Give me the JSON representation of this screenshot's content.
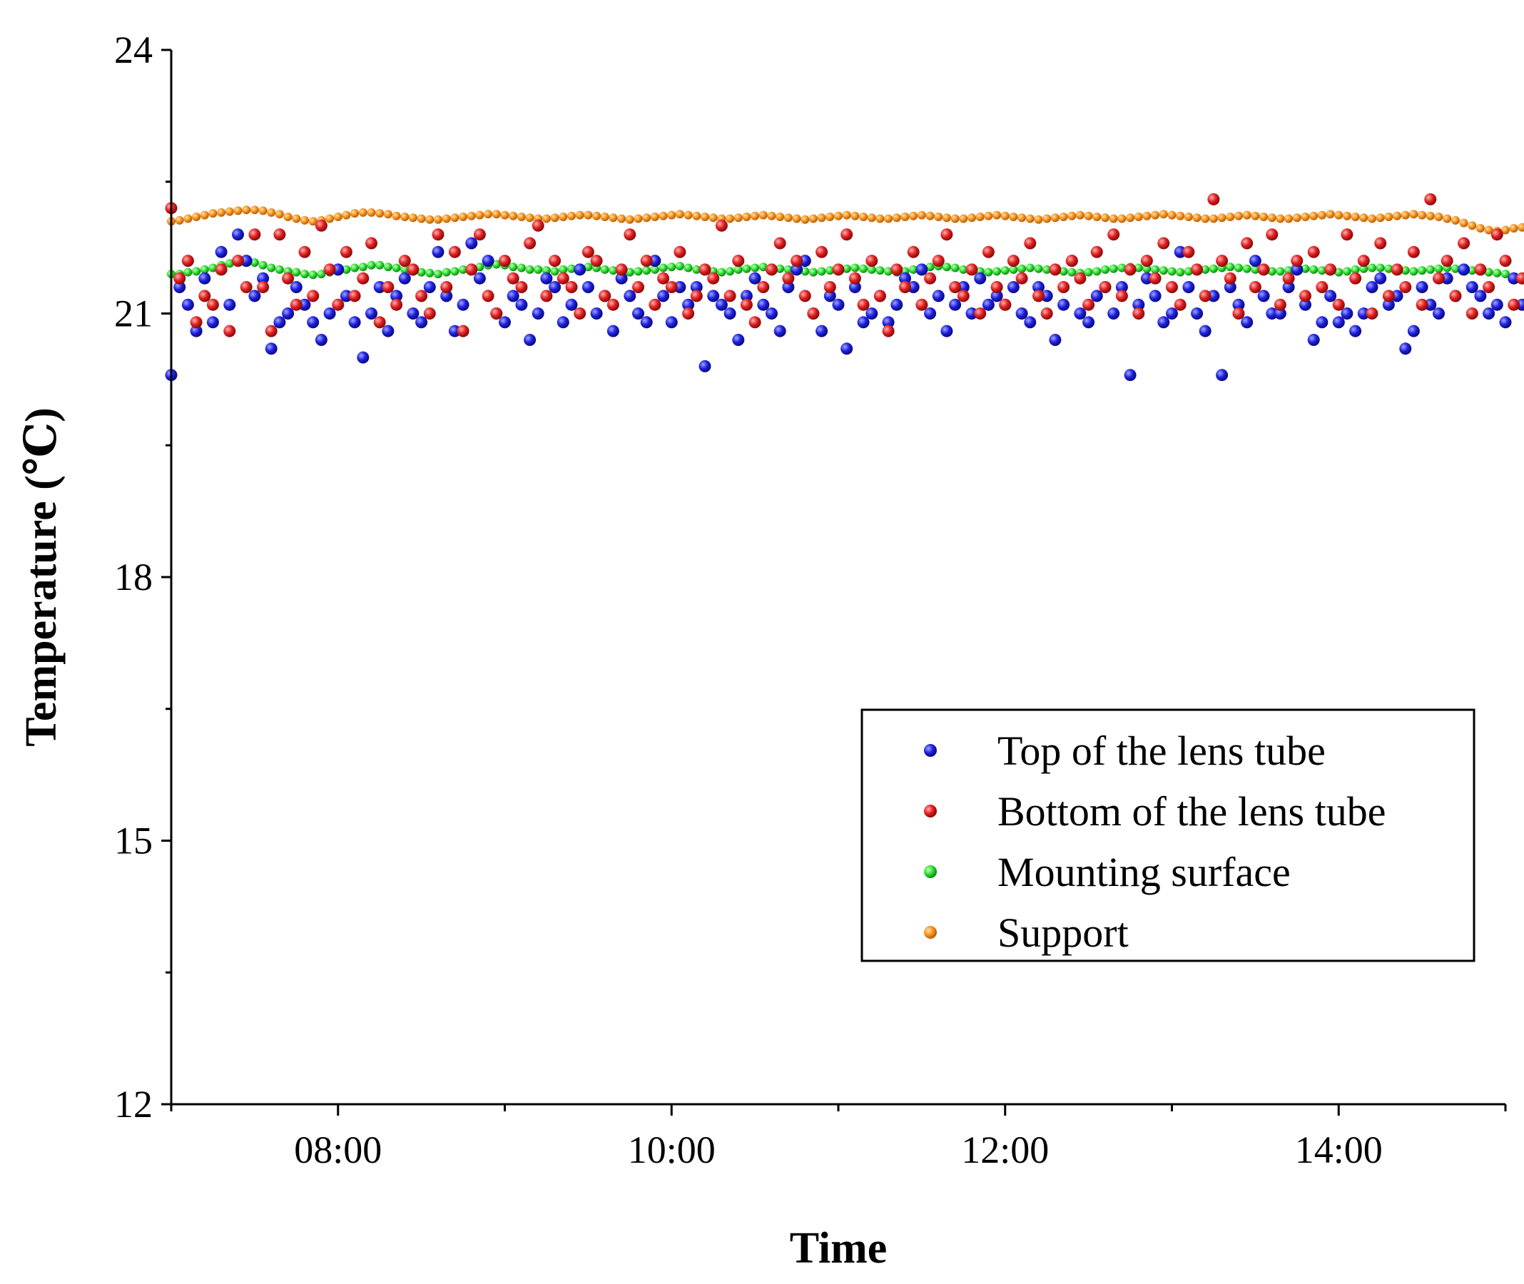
{
  "chart_data": {
    "type": "scatter",
    "title": "",
    "xlabel": "Time",
    "ylabel": "Temperature (℃)",
    "x_unit": "hours",
    "xlim": [
      7.0,
      15.0
    ],
    "ylim": [
      12,
      24
    ],
    "x_ticks": [
      {
        "value": 8,
        "label": "08:00"
      },
      {
        "value": 10,
        "label": "10:00"
      },
      {
        "value": 12,
        "label": "12:00"
      },
      {
        "value": 14,
        "label": "14:00"
      }
    ],
    "y_ticks": [
      {
        "value": 12,
        "label": "12"
      },
      {
        "value": 15,
        "label": "15"
      },
      {
        "value": 18,
        "label": "18"
      },
      {
        "value": 21,
        "label": "21"
      },
      {
        "value": 24,
        "label": "24"
      }
    ],
    "legend_position": "lower-right",
    "grid": false,
    "sample_interval_hours": 0.05,
    "series": [
      {
        "name": "Top of the lens tube",
        "color": "#1f1fe0",
        "start": 7.0,
        "step": 0.05,
        "values": [
          20.3,
          21.3,
          21.1,
          20.8,
          21.4,
          20.9,
          21.7,
          21.1,
          21.9,
          21.6,
          21.2,
          21.4,
          20.6,
          20.9,
          21.0,
          21.3,
          21.1,
          20.9,
          20.7,
          21.0,
          21.5,
          21.2,
          20.9,
          20.5,
          21.0,
          21.3,
          20.8,
          21.2,
          21.4,
          21.0,
          20.9,
          21.3,
          21.7,
          21.2,
          20.8,
          21.1,
          21.8,
          21.4,
          21.6,
          21.0,
          20.9,
          21.2,
          21.1,
          20.7,
          21.0,
          21.4,
          21.3,
          20.9,
          21.1,
          21.5,
          21.3,
          21.0,
          21.2,
          20.8,
          21.4,
          21.2,
          21.0,
          20.9,
          21.6,
          21.2,
          20.9,
          21.3,
          21.1,
          21.3,
          20.4,
          21.2,
          21.1,
          21.0,
          20.7,
          21.2,
          21.4,
          21.1,
          21.0,
          20.8,
          21.3,
          21.5,
          21.6,
          21.0,
          20.8,
          21.2,
          21.1,
          20.6,
          21.3,
          20.9,
          21.0,
          21.2,
          20.9,
          21.1,
          21.4,
          21.3,
          21.5,
          21.0,
          21.2,
          20.8,
          21.1,
          21.3,
          21.0,
          21.4,
          21.1,
          21.2,
          21.1,
          21.3,
          21.0,
          20.9,
          21.3,
          21.2,
          20.7,
          21.1,
          21.6,
          21.0,
          20.9,
          21.2,
          21.3,
          21.0,
          21.3,
          20.3,
          21.1,
          21.4,
          21.2,
          20.9,
          21.0,
          21.7,
          21.3,
          21.0,
          20.8,
          21.2,
          20.3,
          21.3,
          21.1,
          20.9,
          21.6,
          21.2,
          21.0,
          21.0,
          21.3,
          21.5,
          21.1,
          20.7,
          20.9,
          21.2,
          20.9,
          21.0,
          20.8,
          21.0,
          21.3,
          21.4,
          21.1,
          21.2,
          20.6,
          20.8,
          21.3,
          21.1,
          21.0,
          21.4,
          21.2,
          21.5,
          21.3,
          21.2,
          21.0,
          21.1,
          20.9,
          21.4,
          21.1,
          21.3,
          21.0,
          20.6,
          21.1,
          21.3,
          20.9,
          21.2,
          21.0,
          21.1,
          21.6,
          21.2,
          21.3,
          20.9,
          21.3,
          21.1,
          21.2,
          21.1,
          20.9,
          20.6,
          21.4,
          21.2,
          21.0,
          21.3,
          21.6,
          21.2,
          21.3,
          21.1,
          20.9,
          21.4,
          21.6,
          21.1,
          21.2,
          21.0,
          21.5,
          21.0,
          21.3,
          21.1,
          21.2,
          20.7,
          21.6,
          21.4,
          21.3,
          21.4
        ]
      },
      {
        "name": "Bottom of the lens tube",
        "color": "#e01f1f",
        "start": 7.0,
        "step": 0.05,
        "values": [
          22.2,
          21.4,
          21.6,
          20.9,
          21.2,
          21.1,
          21.5,
          20.8,
          21.6,
          21.3,
          21.9,
          21.3,
          20.8,
          21.9,
          21.4,
          21.1,
          21.7,
          21.2,
          22.0,
          21.5,
          21.1,
          21.7,
          21.2,
          21.4,
          21.8,
          20.9,
          21.3,
          21.1,
          21.6,
          21.5,
          21.2,
          21.0,
          21.9,
          21.3,
          21.7,
          20.8,
          21.5,
          21.9,
          21.2,
          21.0,
          21.6,
          21.4,
          21.3,
          21.8,
          22.0,
          21.2,
          21.6,
          21.4,
          21.3,
          21.0,
          21.7,
          21.6,
          21.2,
          21.1,
          21.5,
          21.9,
          21.3,
          21.6,
          21.1,
          21.4,
          21.3,
          21.7,
          21.0,
          21.2,
          21.5,
          21.4,
          22.0,
          21.2,
          21.6,
          21.1,
          20.9,
          21.3,
          21.5,
          21.8,
          21.4,
          21.6,
          21.2,
          21.0,
          21.7,
          21.3,
          21.5,
          21.9,
          21.4,
          21.1,
          21.6,
          21.2,
          20.8,
          21.5,
          21.3,
          21.7,
          21.1,
          21.4,
          21.6,
          21.9,
          21.3,
          21.2,
          21.5,
          21.0,
          21.7,
          21.3,
          21.1,
          21.6,
          21.4,
          21.8,
          21.2,
          21.0,
          21.5,
          21.3,
          21.6,
          21.4,
          21.1,
          21.7,
          21.3,
          21.9,
          21.2,
          21.5,
          21.0,
          21.6,
          21.4,
          21.8,
          21.3,
          21.1,
          21.7,
          21.5,
          21.2,
          22.3,
          21.6,
          21.4,
          21.0,
          21.8,
          21.3,
          21.5,
          21.9,
          21.1,
          21.4,
          21.6,
          21.2,
          21.7,
          21.3,
          21.5,
          21.1,
          21.9,
          21.4,
          21.6,
          21.0,
          21.8,
          21.2,
          21.5,
          21.3,
          21.7,
          21.1,
          22.3,
          21.4,
          21.6,
          21.2,
          21.8,
          21.0,
          21.5,
          21.3,
          21.9,
          21.6,
          21.1,
          21.4,
          21.7,
          21.2,
          21.5,
          22.0,
          21.3,
          21.6,
          21.1,
          21.8,
          21.4,
          21.2,
          21.7,
          21.5,
          21.0,
          21.9,
          21.6,
          21.3,
          21.8,
          21.2,
          21.4,
          21.7,
          21.1,
          21.9,
          21.5,
          21.3,
          21.6,
          21.8,
          21.2,
          22.0,
          21.4,
          21.5,
          21.7,
          21.1,
          21.9,
          21.6,
          21.3,
          22.2,
          21.8,
          21.5,
          21.9,
          21.4,
          21.6,
          22.1,
          21.7
        ]
      },
      {
        "name": "Mounting surface",
        "color": "#2ce02c",
        "start": 7.0,
        "step": 0.05,
        "values": [
          21.45,
          21.45,
          21.47,
          21.48,
          21.5,
          21.52,
          21.55,
          21.57,
          21.6,
          21.6,
          21.58,
          21.55,
          21.52,
          21.5,
          21.48,
          21.47,
          21.45,
          21.44,
          21.45,
          21.47,
          21.48,
          21.5,
          21.52,
          21.53,
          21.55,
          21.55,
          21.53,
          21.52,
          21.5,
          21.48,
          21.47,
          21.46,
          21.45,
          21.47,
          21.48,
          21.5,
          21.52,
          21.53,
          21.55,
          21.56,
          21.55,
          21.53,
          21.52,
          21.5,
          21.5,
          21.49,
          21.48,
          21.5,
          21.51,
          21.52,
          21.53,
          21.52,
          21.5,
          21.49,
          21.48,
          21.47,
          21.48,
          21.49,
          21.5,
          21.52,
          21.53,
          21.54,
          21.52,
          21.5,
          21.49,
          21.48,
          21.47,
          21.48,
          21.5,
          21.51,
          21.52,
          21.53,
          21.52,
          21.51,
          21.5,
          21.49,
          21.48,
          21.47,
          21.48,
          21.49,
          21.5,
          21.51,
          21.52,
          21.51,
          21.5,
          21.49,
          21.48,
          21.47,
          21.48,
          21.5,
          21.52,
          21.53,
          21.54,
          21.53,
          21.52,
          21.5,
          21.49,
          21.48,
          21.47,
          21.48,
          21.49,
          21.5,
          21.51,
          21.52,
          21.51,
          21.5,
          21.49,
          21.48,
          21.47,
          21.46,
          21.47,
          21.48,
          21.5,
          21.51,
          21.52,
          21.53,
          21.52,
          21.51,
          21.5,
          21.49,
          21.48,
          21.47,
          21.48,
          21.49,
          21.5,
          21.51,
          21.52,
          21.53,
          21.52,
          21.51,
          21.5,
          21.49,
          21.48,
          21.48,
          21.49,
          21.5,
          21.51,
          21.5,
          21.49,
          21.48,
          21.47,
          21.48,
          21.5,
          21.51,
          21.52,
          21.52,
          21.51,
          21.5,
          21.49,
          21.48,
          21.49,
          21.5,
          21.51,
          21.52,
          21.51,
          21.5,
          21.49,
          21.48,
          21.47,
          21.46,
          21.45,
          21.42,
          21.38,
          21.35,
          21.33,
          21.32,
          21.33,
          21.35,
          21.36,
          21.37,
          21.36,
          21.35,
          21.34,
          21.33,
          21.34,
          21.35,
          21.36,
          21.37,
          21.36,
          21.35,
          21.33,
          21.32,
          21.33,
          21.34,
          21.36,
          21.38,
          21.4,
          21.42,
          21.44,
          21.45,
          21.46,
          21.47,
          21.48,
          21.5,
          21.5,
          21.51,
          21.51,
          21.52,
          21.52,
          21.52
        ]
      },
      {
        "name": "Support",
        "color": "#f7941d",
        "start": 7.0,
        "step": 0.05,
        "values": [
          22.05,
          22.06,
          22.08,
          22.1,
          22.12,
          22.14,
          22.15,
          22.16,
          22.17,
          22.18,
          22.18,
          22.17,
          22.15,
          22.13,
          22.1,
          22.08,
          22.06,
          22.05,
          22.06,
          22.08,
          22.1,
          22.12,
          22.14,
          22.15,
          22.15,
          22.14,
          22.13,
          22.11,
          22.1,
          22.09,
          22.08,
          22.07,
          22.07,
          22.08,
          22.09,
          22.1,
          22.11,
          22.12,
          22.13,
          22.13,
          22.12,
          22.11,
          22.1,
          22.09,
          22.08,
          22.08,
          22.09,
          22.1,
          22.11,
          22.12,
          22.12,
          22.11,
          22.1,
          22.09,
          22.08,
          22.07,
          22.08,
          22.09,
          22.1,
          22.11,
          22.12,
          22.13,
          22.12,
          22.11,
          22.1,
          22.09,
          22.08,
          22.08,
          22.09,
          22.1,
          22.11,
          22.12,
          22.11,
          22.1,
          22.09,
          22.08,
          22.07,
          22.08,
          22.09,
          22.1,
          22.11,
          22.12,
          22.11,
          22.1,
          22.09,
          22.08,
          22.08,
          22.09,
          22.1,
          22.11,
          22.12,
          22.11,
          22.1,
          22.09,
          22.08,
          22.08,
          22.09,
          22.1,
          22.11,
          22.12,
          22.11,
          22.1,
          22.09,
          22.08,
          22.07,
          22.08,
          22.09,
          22.1,
          22.11,
          22.12,
          22.11,
          22.1,
          22.09,
          22.08,
          22.08,
          22.09,
          22.1,
          22.11,
          22.12,
          22.13,
          22.12,
          22.11,
          22.1,
          22.09,
          22.08,
          22.08,
          22.09,
          22.1,
          22.11,
          22.12,
          22.11,
          22.1,
          22.09,
          22.08,
          22.08,
          22.09,
          22.1,
          22.11,
          22.12,
          22.13,
          22.12,
          22.11,
          22.1,
          22.09,
          22.08,
          22.09,
          22.1,
          22.11,
          22.12,
          22.13,
          22.12,
          22.11,
          22.1,
          22.08,
          22.06,
          22.03,
          22.0,
          21.97,
          21.95,
          21.94,
          21.95,
          21.97,
          21.98,
          21.99,
          21.98,
          21.97,
          21.96,
          21.95,
          21.95,
          21.96,
          21.97,
          21.98,
          21.97,
          21.96,
          21.95,
          21.94,
          21.95,
          21.96,
          21.98,
          22.0,
          22.01,
          22.02,
          22.03,
          22.04,
          22.05,
          22.06,
          22.06,
          22.07,
          22.07,
          22.07,
          22.08,
          22.08,
          22.08,
          22.09
        ]
      }
    ]
  }
}
